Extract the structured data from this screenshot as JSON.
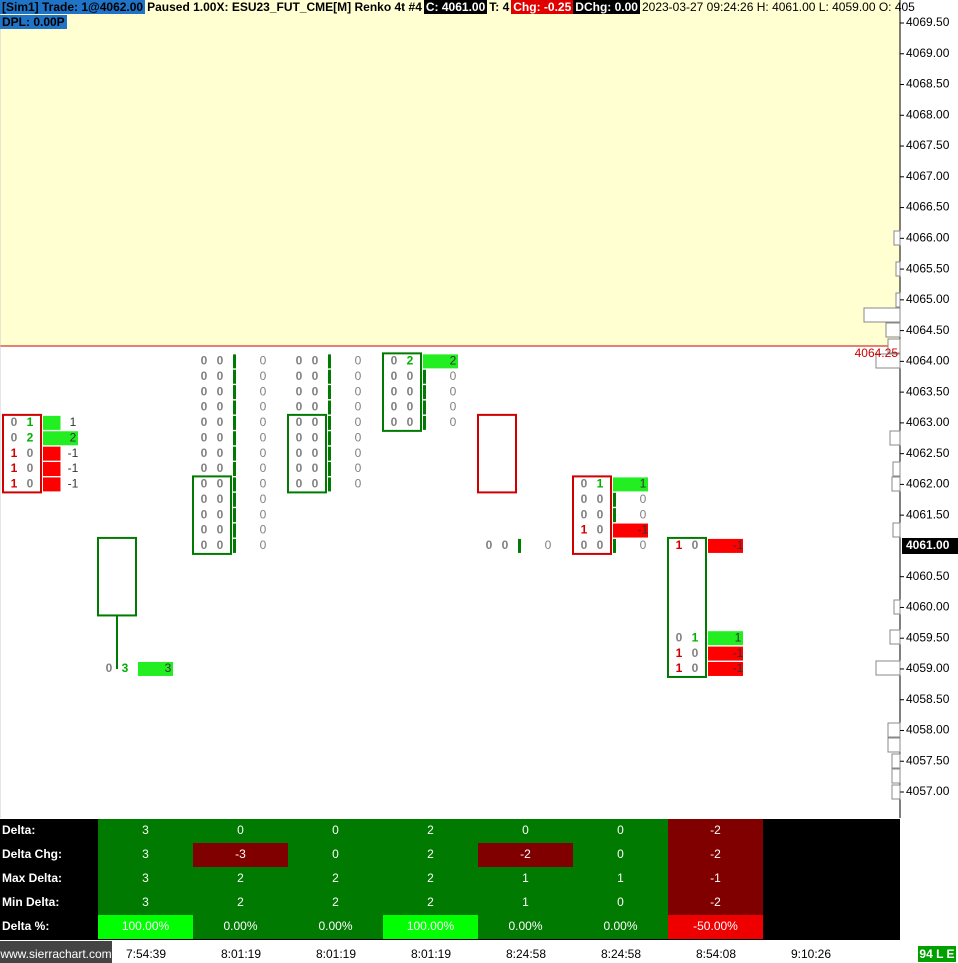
{
  "header": {
    "account": "[Sim1]  Trade: 1@4062.00",
    "symbol": "Paused 1.00X: ESU23_FUT_CME[M]  Renko 4t #4",
    "close": "C: 4061.00",
    "ticks": "T: 4",
    "change": "Chg: -0.25",
    "daily_change": "DChg: 0.00",
    "info": "2023-03-27 09:24:26 H: 4061.00 L: 4059.00 O: 405",
    "dpl": "DPL: 0.00P"
  },
  "price_axis": {
    "labels": [
      "4069.50",
      "4069.00",
      "4068.50",
      "4068.00",
      "4067.50",
      "4067.00",
      "4066.50",
      "4066.00",
      "4065.50",
      "4065.00",
      "4064.50",
      "4064.00",
      "4063.50",
      "4063.00",
      "4062.50",
      "4062.00",
      "4061.50",
      "4060.50",
      "4060.00",
      "4059.50",
      "4059.00",
      "4058.50",
      "4058.00",
      "4057.50",
      "4057.00"
    ],
    "current": "4061.00",
    "line_label": "4064.25"
  },
  "bars": [
    {
      "rows": [
        {
          "bid": "0",
          "ask": "1",
          "delta": "1"
        },
        {
          "bid": "0",
          "ask": "2",
          "delta": "2"
        },
        {
          "bid": "1",
          "ask": "0",
          "delta": "-1"
        },
        {
          "bid": "1",
          "ask": "0",
          "delta": "-1"
        },
        {
          "bid": "1",
          "ask": "0",
          "delta": "-1"
        }
      ]
    },
    {
      "rows": [
        {
          "bid": "0",
          "ask": "3",
          "delta": "3"
        }
      ]
    },
    {
      "rows": [
        {
          "bid": "0",
          "ask": "0",
          "delta": "0"
        },
        {
          "bid": "0",
          "ask": "0",
          "delta": "0"
        },
        {
          "bid": "0",
          "ask": "0",
          "delta": "0"
        },
        {
          "bid": "0",
          "ask": "0",
          "delta": "0"
        },
        {
          "bid": "0",
          "ask": "0",
          "delta": "0"
        },
        {
          "bid": "0",
          "ask": "0",
          "delta": "0"
        },
        {
          "bid": "0",
          "ask": "0",
          "delta": "0"
        },
        {
          "bid": "0",
          "ask": "0",
          "delta": "0"
        },
        {
          "bid": "0",
          "ask": "0",
          "delta": "0"
        },
        {
          "bid": "0",
          "ask": "0",
          "delta": "0"
        },
        {
          "bid": "0",
          "ask": "0",
          "delta": "0"
        },
        {
          "bid": "0",
          "ask": "0",
          "delta": "0"
        },
        {
          "bid": "0",
          "ask": "0",
          "delta": "0"
        }
      ]
    },
    {
      "rows": [
        {
          "bid": "0",
          "ask": "0",
          "delta": "0"
        },
        {
          "bid": "0",
          "ask": "0",
          "delta": "0"
        },
        {
          "bid": "0",
          "ask": "0",
          "delta": "0"
        },
        {
          "bid": "0",
          "ask": "0",
          "delta": "0"
        },
        {
          "bid": "0",
          "ask": "0",
          "delta": "0"
        },
        {
          "bid": "0",
          "ask": "0",
          "delta": "0"
        },
        {
          "bid": "0",
          "ask": "0",
          "delta": "0"
        },
        {
          "bid": "0",
          "ask": "0",
          "delta": "0"
        },
        {
          "bid": "0",
          "ask": "0",
          "delta": "0"
        }
      ]
    },
    {
      "rows": [
        {
          "bid": "0",
          "ask": "2",
          "delta": "2"
        },
        {
          "bid": "0",
          "ask": "0",
          "delta": "0"
        },
        {
          "bid": "0",
          "ask": "0",
          "delta": "0"
        },
        {
          "bid": "0",
          "ask": "0",
          "delta": "0"
        },
        {
          "bid": "0",
          "ask": "0",
          "delta": "0"
        }
      ]
    },
    {
      "rows": [
        {
          "bid": "0",
          "ask": "0",
          "delta": "0"
        }
      ]
    },
    {
      "rows": [
        {
          "bid": "0",
          "ask": "1",
          "delta": "1"
        },
        {
          "bid": "0",
          "ask": "0",
          "delta": "0"
        },
        {
          "bid": "0",
          "ask": "0",
          "delta": "0"
        },
        {
          "bid": "1",
          "ask": "0",
          "delta": "-1"
        },
        {
          "bid": "0",
          "ask": "0",
          "delta": "0"
        }
      ]
    },
    {
      "rows": [
        {
          "bid": "1",
          "ask": "0",
          "delta": "-1"
        },
        {
          "bid": "0",
          "ask": "1",
          "delta": "1"
        },
        {
          "bid": "1",
          "ask": "0",
          "delta": "-1"
        },
        {
          "bid": "1",
          "ask": "0",
          "delta": "-1"
        }
      ]
    }
  ],
  "table": {
    "row_labels": [
      "Delta:",
      "Delta Chg:",
      "Max Delta:",
      "Min Delta:",
      "Delta %:"
    ],
    "rows": [
      [
        "3",
        "0",
        "0",
        "2",
        "0",
        "0",
        "-2"
      ],
      [
        "3",
        "-3",
        "0",
        "2",
        "-2",
        "0",
        "-2"
      ],
      [
        "3",
        "2",
        "2",
        "2",
        "1",
        "1",
        "-1"
      ],
      [
        "3",
        "2",
        "2",
        "2",
        "1",
        "0",
        "-2"
      ],
      [
        "100.00%",
        "0.00%",
        "0.00%",
        "100.00%",
        "0.00%",
        "0.00%",
        "-50.00%"
      ]
    ]
  },
  "time_axis": [
    "7:54:39",
    "8:01:19",
    "8:01:19",
    "8:01:19",
    "8:24:58",
    "8:24:58",
    "8:54:08",
    "9:10:26"
  ],
  "footer": {
    "site": "www.sierrachart.com",
    "status": "94 L E"
  }
}
